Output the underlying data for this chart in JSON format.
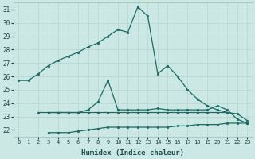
{
  "background_color": "#cce8e4",
  "grid_color": "#b8d8d0",
  "line_color": "#1a6b65",
  "xlabel": "Humidex (Indice chaleur)",
  "xlim": [
    -0.5,
    23.5
  ],
  "ylim": [
    21.5,
    31.5
  ],
  "yticks": [
    22,
    23,
    24,
    25,
    26,
    27,
    28,
    29,
    30,
    31
  ],
  "xticks": [
    0,
    1,
    2,
    3,
    4,
    5,
    6,
    7,
    8,
    9,
    10,
    11,
    12,
    13,
    14,
    15,
    16,
    17,
    18,
    19,
    20,
    21,
    22,
    23
  ],
  "lines": [
    {
      "x": [
        0,
        1,
        2,
        3,
        4,
        5,
        6,
        7,
        8,
        9,
        10,
        11,
        12,
        13,
        14,
        15,
        16,
        17,
        18,
        19,
        20,
        21
      ],
      "y": [
        25.7,
        25.7,
        26.2,
        26.8,
        27.2,
        27.5,
        27.8,
        28.2,
        28.5,
        29.0,
        29.5,
        29.3,
        31.2,
        30.5,
        26.2,
        26.8,
        26.0,
        25.0,
        24.3,
        23.8,
        23.5,
        23.3
      ]
    },
    {
      "x": [
        3,
        4,
        5,
        6,
        7,
        8,
        9,
        10,
        11,
        12,
        13,
        14,
        15,
        16,
        17,
        18,
        19,
        20,
        21,
        22,
        23
      ],
      "y": [
        23.3,
        23.3,
        23.3,
        23.3,
        23.5,
        24.1,
        25.7,
        23.5,
        23.5,
        23.5,
        23.5,
        23.6,
        23.5,
        23.5,
        23.5,
        23.5,
        23.5,
        23.8,
        23.5,
        22.8,
        22.5
      ]
    },
    {
      "x": [
        2,
        3,
        4,
        5,
        6,
        7,
        8,
        9,
        10,
        11,
        12,
        13,
        14,
        15,
        16,
        17,
        18,
        19,
        20,
        21,
        22,
        23
      ],
      "y": [
        23.3,
        23.3,
        23.3,
        23.3,
        23.3,
        23.3,
        23.3,
        23.3,
        23.3,
        23.3,
        23.3,
        23.3,
        23.3,
        23.3,
        23.3,
        23.3,
        23.3,
        23.3,
        23.3,
        23.3,
        23.2,
        22.7
      ]
    },
    {
      "x": [
        3,
        4,
        5,
        6,
        7,
        8,
        9,
        10,
        11,
        12,
        13,
        14,
        15,
        16,
        17,
        18,
        19,
        20,
        21,
        22,
        23
      ],
      "y": [
        21.8,
        21.8,
        21.8,
        21.9,
        22.0,
        22.1,
        22.2,
        22.2,
        22.2,
        22.2,
        22.2,
        22.2,
        22.2,
        22.3,
        22.3,
        22.4,
        22.4,
        22.4,
        22.5,
        22.5,
        22.5
      ]
    }
  ]
}
